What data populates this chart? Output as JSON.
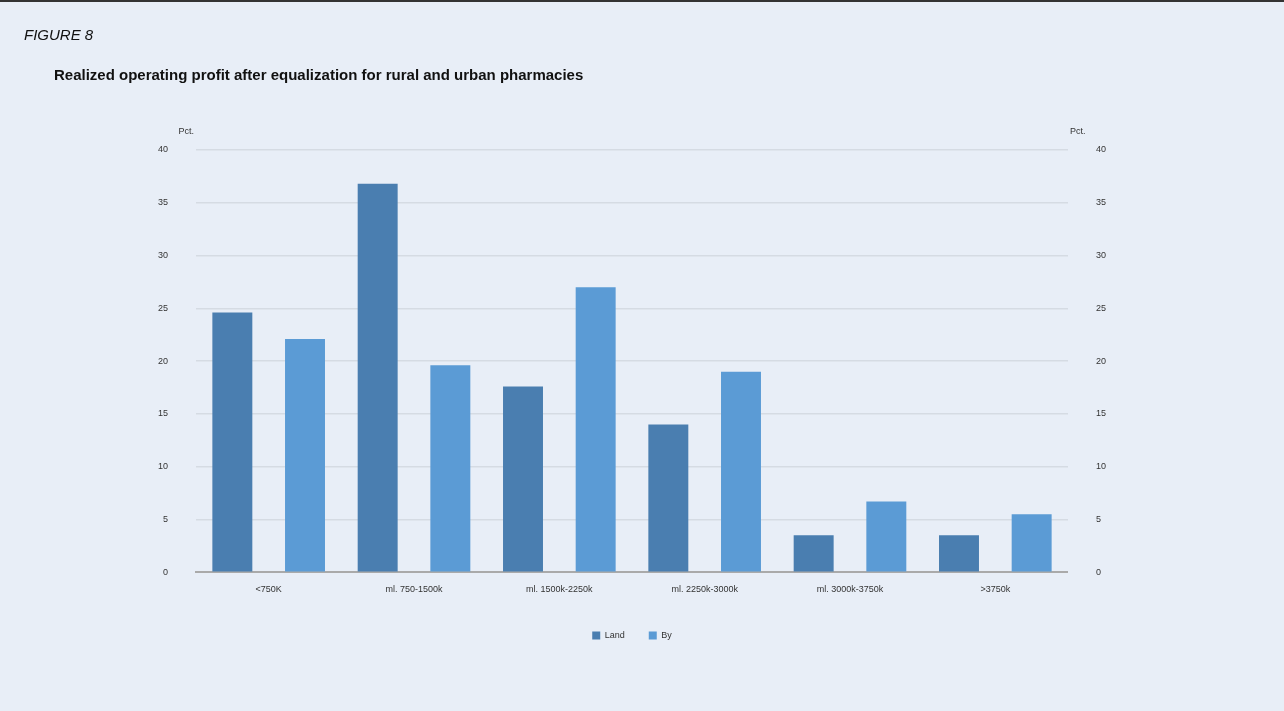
{
  "chart_data": {
    "type": "bar",
    "title": "Realized operating profit after equalization for rural and urban pharmacies",
    "annotations": [
      "FIGURE 8"
    ],
    "ylabel": "Pct.",
    "y2label": "Pct.",
    "categories": [
      "<750K",
      "ml. 750-1500k",
      "ml. 1500k-2250k",
      "ml. 2250k-3000k",
      "ml. 3000k-3750k",
      ">3750k"
    ],
    "series": [
      {
        "name": "Land",
        "color": "#4a7eb0",
        "values": [
          24.6,
          36.8,
          17.6,
          14.0,
          3.5,
          3.5
        ]
      },
      {
        "name": "By",
        "color": "#5b9bd5",
        "values": [
          22.1,
          19.6,
          27.0,
          19.0,
          6.7,
          5.5
        ]
      }
    ],
    "ylim": [
      0,
      40
    ],
    "yticks": [
      0,
      5,
      10,
      15,
      20,
      25,
      30,
      35,
      40
    ],
    "y2lim": [
      0,
      40
    ],
    "y2ticks": [
      0,
      5,
      10,
      15,
      20,
      25,
      30,
      35,
      40
    ],
    "grid": "y",
    "legend": "bottom"
  }
}
